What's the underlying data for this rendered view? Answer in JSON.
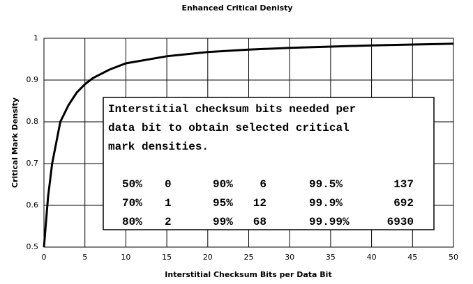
{
  "chart_data": {
    "type": "line",
    "title": "Enhanced Critical Denisty",
    "xlabel": "Interstitial Checksum Bits per Data Bit",
    "ylabel": "Critical Mark Density",
    "x": [
      0,
      0.5,
      1,
      2,
      3,
      4,
      5,
      6,
      8,
      10,
      15,
      20,
      25,
      30,
      35,
      40,
      45,
      50
    ],
    "values": [
      0.5,
      0.62,
      0.7,
      0.8,
      0.84,
      0.87,
      0.89,
      0.905,
      0.925,
      0.94,
      0.957,
      0.967,
      0.973,
      0.977,
      0.98,
      0.983,
      0.985,
      0.987
    ],
    "color": "#000000",
    "xlim": [
      0,
      50
    ],
    "xticks": [
      0,
      5,
      10,
      15,
      20,
      25,
      30,
      35,
      40,
      45,
      50
    ],
    "ylim": [
      0.5,
      1
    ],
    "yticks": [
      0.5,
      0.6,
      0.7,
      0.8,
      0.9,
      1
    ],
    "grid": true,
    "annotation": {
      "lines": [
        "Interstitial checksum bits needed per",
        "data bit to obtain selected critical",
        "mark densities."
      ],
      "table": [
        [
          [
            "50%",
            "0"
          ],
          [
            "90%",
            "6"
          ],
          [
            "99.5%",
            "137"
          ]
        ],
        [
          [
            "70%",
            "1"
          ],
          [
            "95%",
            "12"
          ],
          [
            "99.9%",
            "692"
          ]
        ],
        [
          [
            "80%",
            "2"
          ],
          [
            "99%",
            "68"
          ],
          [
            "99.99%",
            "6930"
          ]
        ]
      ]
    }
  }
}
